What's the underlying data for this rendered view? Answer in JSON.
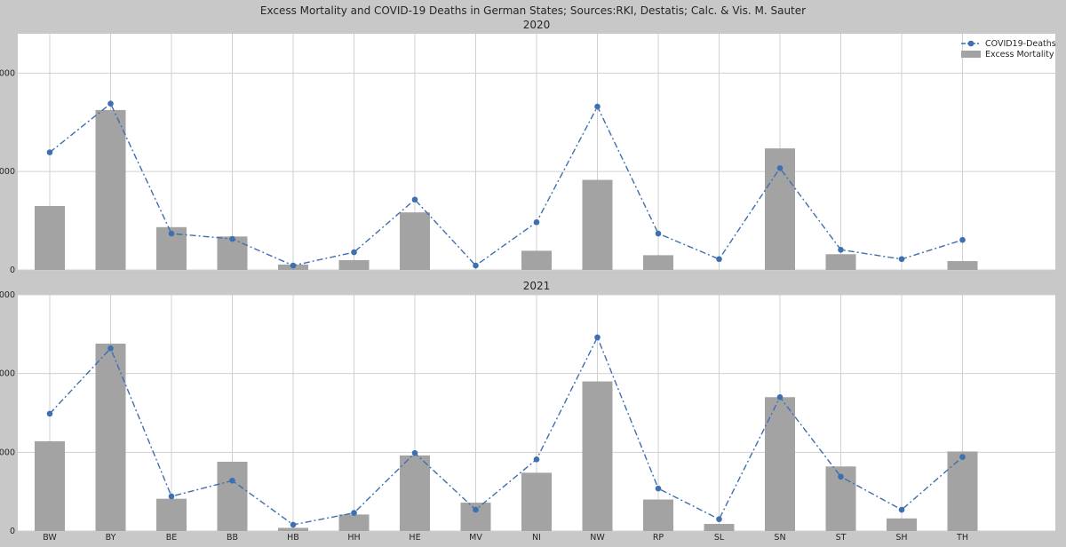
{
  "suptitle": "Excess Mortality and COVID-19 Deaths in German States; Sources:RKI, Destatis; Calc. & Vis. M. Sauter",
  "chart_data": [
    {
      "type": "bar",
      "title": "2020",
      "categories": [
        "BW",
        "BY",
        "BE",
        "BB",
        "HB",
        "HH",
        "HE",
        "MV",
        "NI",
        "NW",
        "RP",
        "SL",
        "SN",
        "ST",
        "SH",
        "TH"
      ],
      "ylim": [
        0,
        4800
      ],
      "yticks": [
        0,
        2000,
        4000
      ],
      "ytick_labels": [
        "0",
        ",000",
        ",000"
      ],
      "grid": true,
      "legend": "top-right",
      "legend_entries": [
        "COVID19-Deaths",
        "Excess Mortality"
      ],
      "series": [
        {
          "name": "Excess Mortality",
          "kind": "bar",
          "color": "#a3a3a3",
          "values": [
            1300,
            3250,
            870,
            680,
            110,
            200,
            1170,
            0,
            390,
            1830,
            300,
            0,
            2470,
            320,
            0,
            180
          ]
        },
        {
          "name": "COVID19-Deaths",
          "kind": "line",
          "color": "#3e6fb0",
          "values": [
            2390,
            3380,
            740,
            630,
            90,
            360,
            1430,
            90,
            970,
            3320,
            740,
            220,
            2070,
            410,
            220,
            610
          ]
        }
      ]
    },
    {
      "type": "bar",
      "title": "2021",
      "categories": [
        "BW",
        "BY",
        "BE",
        "BB",
        "HB",
        "HH",
        "HE",
        "MV",
        "NI",
        "NW",
        "RP",
        "SL",
        "SN",
        "ST",
        "SH",
        "TH"
      ],
      "ylim": [
        0,
        3000
      ],
      "yticks": [
        0,
        1000,
        2000,
        3000
      ],
      "ytick_labels": [
        "0",
        ",000",
        ",000",
        ",000"
      ],
      "grid": true,
      "series": [
        {
          "name": "Excess Mortality",
          "kind": "bar",
          "color": "#a3a3a3",
          "values": [
            1140,
            2380,
            410,
            880,
            40,
            210,
            960,
            360,
            740,
            1900,
            400,
            90,
            1700,
            820,
            160,
            1010
          ]
        },
        {
          "name": "COVID19-Deaths",
          "kind": "line",
          "color": "#3e6fb0",
          "values": [
            1490,
            2320,
            440,
            640,
            80,
            230,
            990,
            270,
            910,
            2460,
            540,
            150,
            1700,
            690,
            270,
            940
          ]
        }
      ]
    }
  ]
}
